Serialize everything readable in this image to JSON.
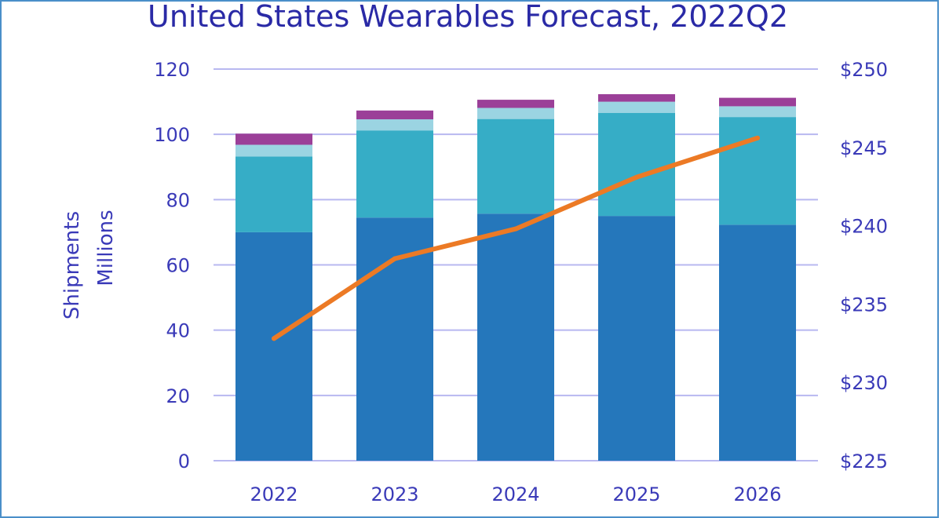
{
  "chart_data": {
    "type": "bar",
    "title": "United States Wearables Forecast, 2022Q2",
    "ylabel_lines": [
      "Shipments",
      "Millions"
    ],
    "categories": [
      "2022",
      "2023",
      "2024",
      "2025",
      "2026"
    ],
    "series": [
      {
        "values": [
          70,
          74.5,
          75.7,
          75,
          72.3
        ],
        "color": "#2577bb"
      },
      {
        "values": [
          23.2,
          26.7,
          29,
          31.6,
          33
        ],
        "color": "#36adc6"
      },
      {
        "values": [
          3.6,
          3.4,
          3.4,
          3.4,
          3.3
        ],
        "color": "#9bd4e2"
      },
      {
        "values": [
          3.4,
          2.7,
          2.5,
          2.3,
          2.6
        ],
        "color": "#9b3f98"
      }
    ],
    "line": {
      "values": [
        232.8,
        237.9,
        239.8,
        243.1,
        245.6
      ],
      "color": "#ec7a25"
    },
    "ylim": [
      0,
      120
    ],
    "yticks": [
      "0",
      "20",
      "40",
      "60",
      "80",
      "100",
      "120"
    ],
    "y2lim": [
      225,
      250
    ],
    "y2ticks": [
      "$225",
      "$230",
      "$235",
      "$240",
      "$245",
      "$250"
    ],
    "grid": true,
    "gridColor": "#b8b8f0"
  }
}
